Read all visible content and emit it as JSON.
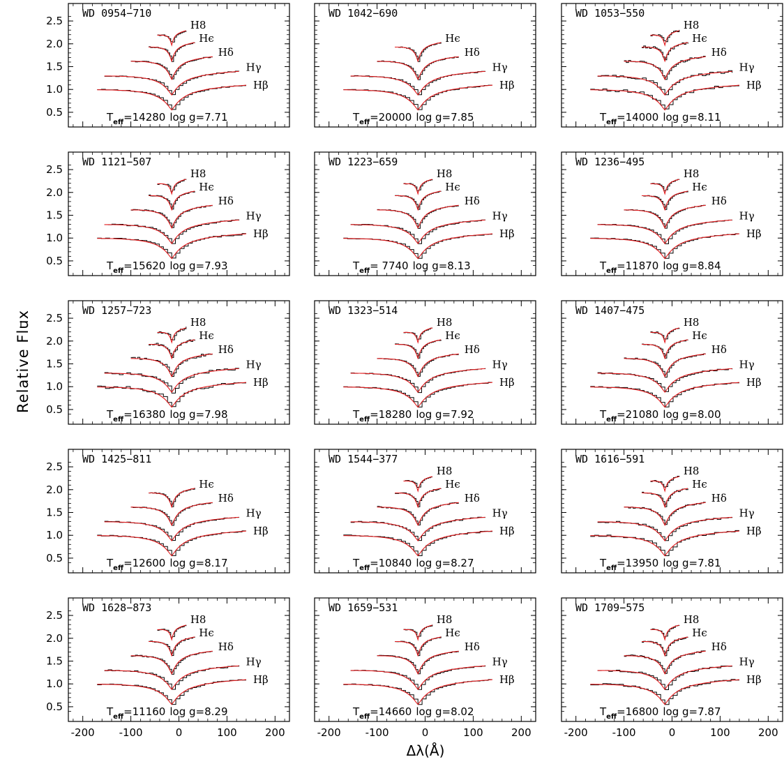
{
  "figure": {
    "y_axis_title": "Relative Flux",
    "x_axis_title": "Δλ(Å)"
  },
  "chart_data": {
    "type": "line",
    "layout": "5 rows × 3 columns of panels",
    "ylim": [
      0.3,
      2.7
    ],
    "xlim": [
      -230,
      230
    ],
    "yticks": [
      0.5,
      1.0,
      1.5,
      2.0,
      2.5
    ],
    "xticks": [
      -200,
      -100,
      0,
      100,
      200
    ],
    "line_center_offset": -15,
    "line_order": [
      "Hβ",
      "Hγ",
      "Hδ",
      "Hϵ",
      "H8"
    ],
    "line_labels": {
      "Hβ": "Hβ",
      "Hγ": "Hγ",
      "Hδ": "Hδ",
      "Hϵ": "Hϵ",
      "H8": "H8"
    },
    "line_baselines": {
      "Hβ": 1.1,
      "Hγ": 1.4,
      "Hδ": 1.72,
      "Hϵ": 2.02,
      "H8": 2.27
    },
    "line_half_width": {
      "Hβ": 155,
      "Hγ": 140,
      "Hδ": 85,
      "Hϵ": 48,
      "H8": 30
    },
    "observed_color": "#000000",
    "model_color": "#e41a1c",
    "param_labels": {
      "teff": "T",
      "teff_sub": "eff",
      "logg": "log g="
    },
    "panels": [
      {
        "name": "WD 0954−710",
        "teff": "14280",
        "logg": "7.71",
        "lines": [
          "Hβ",
          "Hγ",
          "Hδ",
          "Hϵ",
          "H8"
        ],
        "noise": 0.012
      },
      {
        "name": "WD 1042−690",
        "teff": "20000",
        "logg": "7.85",
        "lines": [
          "Hβ",
          "Hγ",
          "Hδ",
          "Hϵ"
        ],
        "noise": 0.01
      },
      {
        "name": "WD 1053−550",
        "teff": "14000",
        "logg": "8.11",
        "lines": [
          "Hβ",
          "Hγ",
          "Hδ",
          "Hϵ",
          "H8"
        ],
        "noise": 0.03
      },
      {
        "name": "WD 1121−507",
        "teff": "15620",
        "logg": "7.93",
        "lines": [
          "Hβ",
          "Hγ",
          "Hδ",
          "Hϵ",
          "H8"
        ],
        "noise": 0.015
      },
      {
        "name": "WD 1223−659",
        "teff": " 7740",
        "logg": "8.13",
        "lines": [
          "Hβ",
          "Hγ",
          "Hδ",
          "Hϵ",
          "H8"
        ],
        "noise": 0.01
      },
      {
        "name": "WD 1236−495",
        "teff": "11870",
        "logg": "8.84",
        "lines": [
          "Hβ",
          "Hγ",
          "Hδ",
          "Hϵ",
          "H8"
        ],
        "noise": 0.01
      },
      {
        "name": "WD 1257−723",
        "teff": "16380",
        "logg": "7.98",
        "lines": [
          "Hβ",
          "Hγ",
          "Hδ",
          "Hϵ",
          "H8"
        ],
        "noise": 0.03
      },
      {
        "name": "WD 1323−514",
        "teff": "18280",
        "logg": "7.92",
        "lines": [
          "Hβ",
          "Hγ",
          "Hδ",
          "Hϵ",
          "H8"
        ],
        "noise": 0.01
      },
      {
        "name": "WD 1407−475",
        "teff": "21080",
        "logg": "8.00",
        "lines": [
          "Hβ",
          "Hγ",
          "Hδ",
          "Hϵ",
          "H8"
        ],
        "noise": 0.015
      },
      {
        "name": "WD 1425−811",
        "teff": "12600",
        "logg": "8.17",
        "lines": [
          "Hβ",
          "Hγ",
          "Hδ",
          "Hϵ"
        ],
        "noise": 0.012
      },
      {
        "name": "WD 1544−377",
        "teff": "10840",
        "logg": "8.27",
        "lines": [
          "Hβ",
          "Hγ",
          "Hδ",
          "Hϵ",
          "H8"
        ],
        "noise": 0.015
      },
      {
        "name": "WD 1616−591",
        "teff": "13950",
        "logg": "7.81",
        "lines": [
          "Hβ",
          "Hγ",
          "Hδ",
          "Hϵ",
          "H8"
        ],
        "noise": 0.02
      },
      {
        "name": "WD 1628−873",
        "teff": "11160",
        "logg": "8.29",
        "lines": [
          "Hβ",
          "Hγ",
          "Hδ",
          "Hϵ",
          "H8"
        ],
        "noise": 0.015
      },
      {
        "name": "WD 1659−531",
        "teff": "14660",
        "logg": "8.02",
        "lines": [
          "Hβ",
          "Hγ",
          "Hδ",
          "Hϵ",
          "H8"
        ],
        "noise": 0.01
      },
      {
        "name": "WD 1709−575",
        "teff": "16800",
        "logg": "7.87",
        "lines": [
          "Hβ",
          "Hγ",
          "Hδ",
          "Hϵ",
          "H8"
        ],
        "noise": 0.02
      }
    ]
  }
}
